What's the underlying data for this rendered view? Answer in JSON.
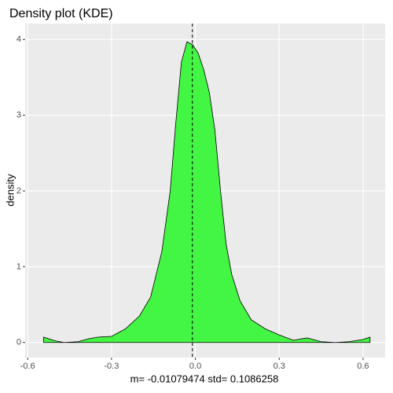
{
  "chart_data": {
    "type": "area",
    "title": "Density plot (KDE)",
    "xlabel": "m=  -0.01079474  std=  0.1086258",
    "ylabel": "density",
    "x": [
      -0.543,
      -0.5,
      -0.47,
      -0.42,
      -0.38,
      -0.35,
      -0.3,
      -0.25,
      -0.2,
      -0.16,
      -0.12,
      -0.09,
      -0.07,
      -0.05,
      -0.03,
      -0.01,
      0.01,
      0.03,
      0.05,
      0.07,
      0.09,
      0.11,
      0.13,
      0.16,
      0.2,
      0.25,
      0.3,
      0.35,
      0.4,
      0.45,
      0.5,
      0.55,
      0.6,
      0.625
    ],
    "values": [
      0.07,
      0.02,
      0.0,
      0.01,
      0.05,
      0.07,
      0.08,
      0.18,
      0.35,
      0.6,
      1.2,
      2.0,
      2.9,
      3.7,
      3.97,
      3.93,
      3.82,
      3.6,
      3.3,
      2.8,
      2.0,
      1.3,
      0.9,
      0.55,
      0.3,
      0.18,
      0.1,
      0.03,
      0.06,
      0.01,
      0.0,
      0.01,
      0.04,
      0.07
    ],
    "color": "#44f644",
    "vline": {
      "value": -0.01079474
    },
    "xlim": [
      -0.609,
      0.679
    ],
    "ylim": [
      -0.2,
      4.21
    ],
    "xticks": [
      -0.6,
      -0.3,
      {
        "value": 0,
        "label": "0.0"
      },
      0.3,
      0.6
    ],
    "yticks": [
      0,
      1,
      2,
      3,
      4
    ],
    "grid": true
  }
}
